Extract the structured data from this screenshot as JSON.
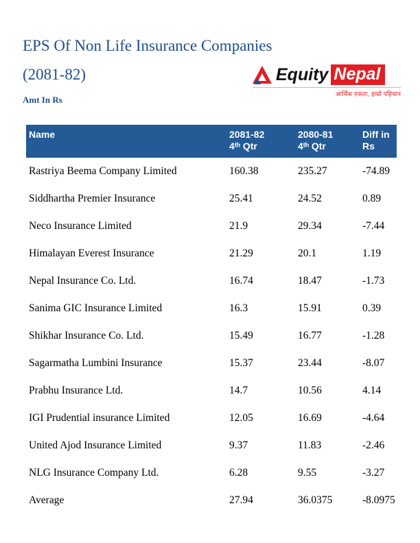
{
  "page": {
    "title_line1": "EPS Of Non Life Insurance Companies",
    "title_line2": "(2081-82)",
    "amount_label": "Amt In Rs"
  },
  "logo": {
    "equity": "Equity",
    "nepal": "Nepal",
    "tagline": "आर्थिक एकता, हाम्रो पहिचान"
  },
  "table_headers_display": [
    "Name",
    "2081-82\n4ᵗʰ Qtr",
    "2080-81\n4ᵗʰ Qtr",
    "Diff in\nRs"
  ],
  "colors": {
    "header_bg": "#245a96",
    "title_blue": "#1f4e8c",
    "brand_red": "#e31e24"
  },
  "chart_data": {
    "type": "table",
    "title": "EPS Of Non Life Insurance Companies (2081-82)",
    "unit": "Amt In Rs",
    "columns": [
      "Name",
      "2081-82 4th Qtr",
      "2080-81 4th Qtr",
      "Diff in Rs"
    ],
    "rows": [
      [
        "Rastriya Beema Company Limited",
        160.38,
        235.27,
        -74.89
      ],
      [
        "Siddhartha Premier Insurance",
        25.41,
        24.52,
        0.89
      ],
      [
        "Neco Insurance Limited",
        21.9,
        29.34,
        -7.44
      ],
      [
        "Himalayan Everest Insurance",
        21.29,
        20.1,
        1.19
      ],
      [
        "Nepal Insurance Co. Ltd.",
        16.74,
        18.47,
        -1.73
      ],
      [
        "Sanima GIC Insurance Limited",
        16.3,
        15.91,
        0.39
      ],
      [
        "Shikhar Insurance Co. Ltd.",
        15.49,
        16.77,
        -1.28
      ],
      [
        "Sagarmatha Lumbini Insurance",
        15.37,
        23.44,
        -8.07
      ],
      [
        "Prabhu Insurance Ltd.",
        14.7,
        10.56,
        4.14
      ],
      [
        "IGI Prudential insurance Limited",
        12.05,
        16.69,
        -4.64
      ],
      [
        "United Ajod Insurance Limited",
        9.37,
        11.83,
        -2.46
      ],
      [
        "NLG Insurance Company Ltd.",
        6.28,
        9.55,
        -3.27
      ],
      [
        "Average",
        27.94,
        36.0375,
        -8.0975
      ]
    ]
  }
}
